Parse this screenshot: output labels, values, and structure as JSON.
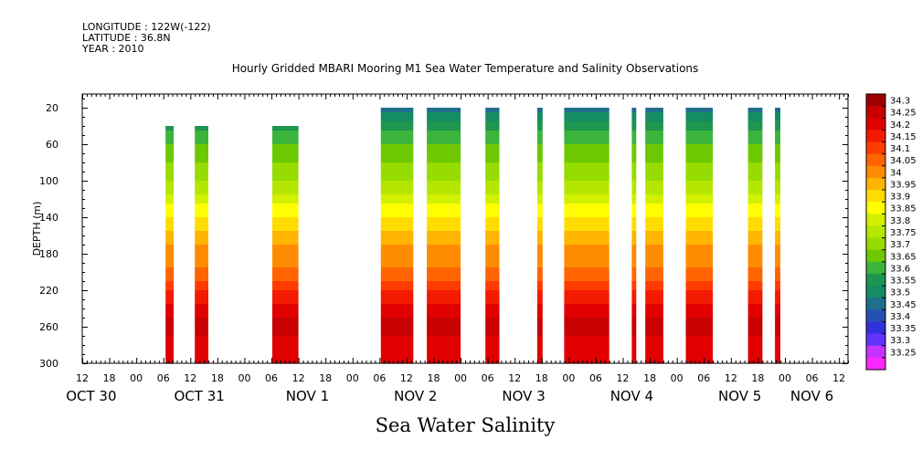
{
  "header": {
    "longitude": "LONGITUDE : 122W(-122)",
    "latitude": "LATITUDE : 36.8N",
    "year": "YEAR : 2010"
  },
  "chart_data": {
    "type": "heatmap",
    "title": "Hourly Gridded MBARI Mooring M1 Sea Water Temperature and Salinity Observations",
    "bottom_title": "Sea Water Salinity",
    "ylabel": "DEPTH (m)",
    "xlabel": "",
    "ylim": [
      300,
      5
    ],
    "y_ticks": [
      20,
      60,
      100,
      140,
      180,
      220,
      260,
      300
    ],
    "x_range_hours": [
      0,
      170
    ],
    "x_hour_ticks": [
      {
        "h": 0,
        "label": "12"
      },
      {
        "h": 6,
        "label": "18"
      },
      {
        "h": 12,
        "label": "00"
      },
      {
        "h": 18,
        "label": "06"
      },
      {
        "h": 24,
        "label": "12"
      },
      {
        "h": 30,
        "label": "18"
      },
      {
        "h": 36,
        "label": "00"
      },
      {
        "h": 42,
        "label": "06"
      },
      {
        "h": 48,
        "label": "12"
      },
      {
        "h": 54,
        "label": "18"
      },
      {
        "h": 60,
        "label": "00"
      },
      {
        "h": 66,
        "label": "06"
      },
      {
        "h": 72,
        "label": "12"
      },
      {
        "h": 78,
        "label": "18"
      },
      {
        "h": 84,
        "label": "00"
      },
      {
        "h": 90,
        "label": "06"
      },
      {
        "h": 96,
        "label": "12"
      },
      {
        "h": 102,
        "label": "18"
      },
      {
        "h": 108,
        "label": "00"
      },
      {
        "h": 114,
        "label": "06"
      },
      {
        "h": 120,
        "label": "12"
      },
      {
        "h": 126,
        "label": "18"
      },
      {
        "h": 132,
        "label": "00"
      },
      {
        "h": 138,
        "label": "06"
      },
      {
        "h": 144,
        "label": "12"
      },
      {
        "h": 150,
        "label": "18"
      },
      {
        "h": 156,
        "label": "00"
      },
      {
        "h": 162,
        "label": "06"
      },
      {
        "h": 168,
        "label": "12"
      }
    ],
    "x_date_labels": [
      {
        "h": 2,
        "label": "OCT 30"
      },
      {
        "h": 26,
        "label": "OCT 31"
      },
      {
        "h": 50,
        "label": "NOV  1"
      },
      {
        "h": 74,
        "label": "NOV  2"
      },
      {
        "h": 98,
        "label": "NOV  3"
      },
      {
        "h": 122,
        "label": "NOV  4"
      },
      {
        "h": 146,
        "label": "NOV  5"
      },
      {
        "h": 162,
        "label": "NOV  6"
      }
    ],
    "colorbar": {
      "levels": [
        "34.3",
        "34.25",
        "34.2",
        "34.15",
        "34.1",
        "34.05",
        "34",
        "33.95",
        "33.9",
        "33.85",
        "33.8",
        "33.75",
        "33.7",
        "33.65",
        "33.6",
        "33.55",
        "33.5",
        "33.45",
        "33.4",
        "33.35",
        "33.3",
        "33.25"
      ],
      "colors": [
        "#a00000",
        "#c80000",
        "#e00000",
        "#f41a00",
        "#ff3c00",
        "#ff6400",
        "#ff8c00",
        "#ffb400",
        "#ffdc00",
        "#ffff00",
        "#d2f000",
        "#b4e600",
        "#96dc00",
        "#6ec800",
        "#3cb43c",
        "#1e9650",
        "#148c64",
        "#1e6e8c",
        "#2850b4",
        "#3232dc",
        "#6432ff",
        "#c832ff",
        "#ff28ff"
      ]
    },
    "segments": [
      {
        "start": 18.5,
        "end": 20.3,
        "top_depth": 40
      },
      {
        "start": 25.0,
        "end": 28.0,
        "top_depth": 40
      },
      {
        "start": 42.2,
        "end": 48.0,
        "top_depth": 40
      },
      {
        "start": 66.3,
        "end": 73.5,
        "top_depth": 20
      },
      {
        "start": 76.5,
        "end": 84.0,
        "top_depth": 20
      },
      {
        "start": 89.5,
        "end": 92.6,
        "top_depth": 20
      },
      {
        "start": 101.0,
        "end": 102.2,
        "top_depth": 20
      },
      {
        "start": 107.0,
        "end": 117.0,
        "top_depth": 20
      },
      {
        "start": 122.0,
        "end": 123.0,
        "top_depth": 20
      },
      {
        "start": 125.0,
        "end": 129.0,
        "top_depth": 20
      },
      {
        "start": 134.0,
        "end": 140.0,
        "top_depth": 20
      },
      {
        "start": 147.8,
        "end": 151.0,
        "top_depth": 20
      },
      {
        "start": 153.8,
        "end": 155.0,
        "top_depth": 20
      }
    ],
    "depth_profile": [
      {
        "depth": 20,
        "salinity": 33.45
      },
      {
        "depth": 35,
        "salinity": 33.55
      },
      {
        "depth": 50,
        "salinity": 33.62
      },
      {
        "depth": 70,
        "salinity": 33.68
      },
      {
        "depth": 90,
        "salinity": 33.73
      },
      {
        "depth": 110,
        "salinity": 33.78
      },
      {
        "depth": 130,
        "salinity": 33.86
      },
      {
        "depth": 150,
        "salinity": 33.93
      },
      {
        "depth": 170,
        "salinity": 34.0
      },
      {
        "depth": 190,
        "salinity": 34.04
      },
      {
        "depth": 210,
        "salinity": 34.1
      },
      {
        "depth": 225,
        "salinity": 34.16
      },
      {
        "depth": 240,
        "salinity": 34.22
      },
      {
        "depth": 260,
        "salinity": 34.28
      },
      {
        "depth": 280,
        "salinity": 34.22
      },
      {
        "depth": 300,
        "salinity": 34.2
      }
    ]
  }
}
